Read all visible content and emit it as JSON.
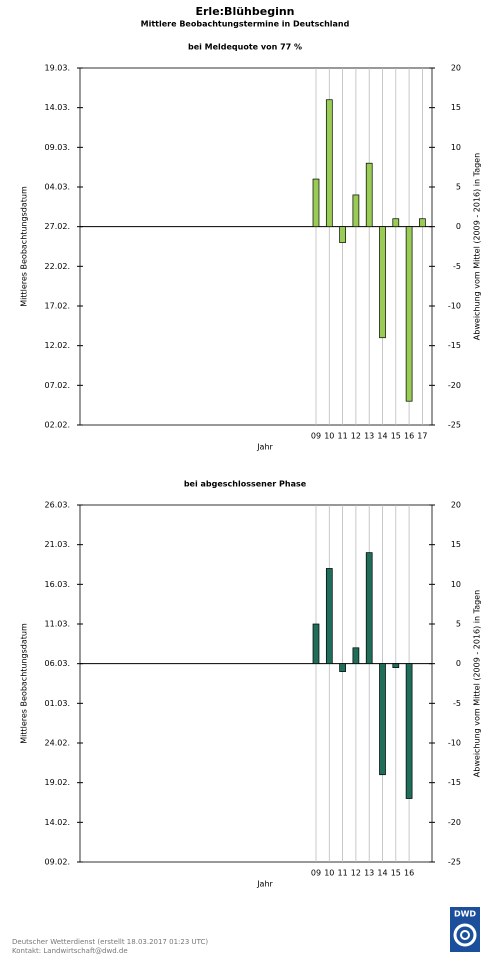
{
  "title": "Erle:Blühbeginn",
  "subtitle": "Mittlere Beobachtungstermine in Deutschland",
  "footer": [
    "Deutscher Wetterdienst (erstellt 18.03.2017 01:23 UTC)",
    "Kontakt: Landwirtschaft@dwd.de"
  ],
  "logo": "DWD",
  "chart_data": [
    {
      "type": "bar",
      "title": "bei Meldequote von 77 %",
      "xlabel": "Jahr",
      "ylabel": "Mittleres Beobachtungsdatum",
      "y2label": "Abweichung vom Mittel (2009 - 2016) in Tagen",
      "categories": [
        "09",
        "10",
        "11",
        "12",
        "13",
        "14",
        "15",
        "16",
        "17"
      ],
      "values": [
        6,
        16,
        -2,
        4,
        8,
        -14,
        1,
        -22,
        1
      ],
      "color": "#99cc55",
      "ylim": [
        -25,
        20
      ],
      "yticks": [
        20,
        15,
        10,
        5,
        0,
        -5,
        -10,
        -15,
        -20,
        -25
      ],
      "date_ticks": [
        {
          "value": 20,
          "label": "19.03."
        },
        {
          "value": 15,
          "label": "14.03."
        },
        {
          "value": 10,
          "label": "09.03."
        },
        {
          "value": 5,
          "label": "04.03."
        },
        {
          "value": 0,
          "label": "27.02."
        },
        {
          "value": -5,
          "label": "22.02."
        },
        {
          "value": -10,
          "label": "17.02."
        },
        {
          "value": -15,
          "label": "12.02."
        },
        {
          "value": -20,
          "label": "07.02."
        },
        {
          "value": -25,
          "label": "02.02."
        }
      ]
    },
    {
      "type": "bar",
      "title": "bei abgeschlossener Phase",
      "xlabel": "Jahr",
      "ylabel": "Mittleres Beobachtungsdatum",
      "y2label": "Abweichung vom Mittel (2009 - 2016) in Tagen",
      "categories": [
        "09",
        "10",
        "11",
        "12",
        "13",
        "14",
        "15",
        "16"
      ],
      "values": [
        5,
        12,
        -1,
        2,
        14,
        -14,
        -0.5,
        -17
      ],
      "color": "#1f6e5a",
      "ylim": [
        -25,
        20
      ],
      "yticks": [
        20,
        15,
        10,
        5,
        0,
        -5,
        -10,
        -15,
        -20,
        -25
      ],
      "date_ticks": [
        {
          "value": 20,
          "label": "26.03."
        },
        {
          "value": 15,
          "label": "21.03."
        },
        {
          "value": 10,
          "label": "16.03."
        },
        {
          "value": 5,
          "label": "11.03."
        },
        {
          "value": 0,
          "label": "06.03."
        },
        {
          "value": -5,
          "label": "01.03."
        },
        {
          "value": -10,
          "label": "24.02."
        },
        {
          "value": -15,
          "label": "19.02."
        },
        {
          "value": -20,
          "label": "14.02."
        },
        {
          "value": -25,
          "label": "09.02."
        }
      ]
    }
  ]
}
